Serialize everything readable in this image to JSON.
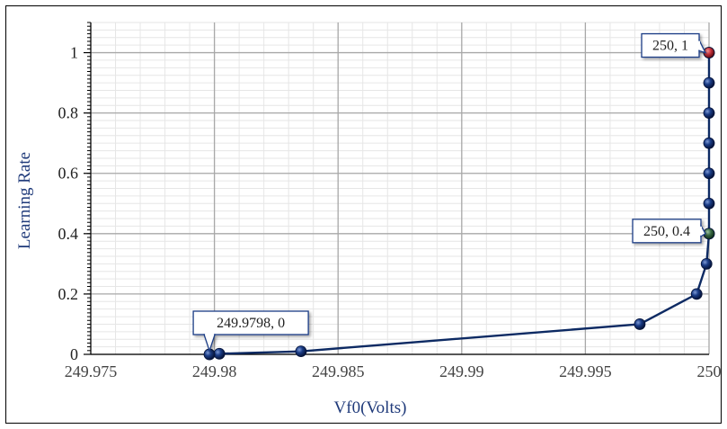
{
  "chart_data": {
    "type": "scatter",
    "title": "",
    "xlabel": "Vf0(Volts)",
    "ylabel": "Learning Rate",
    "xlim": [
      249.975,
      250
    ],
    "ylim": [
      0,
      1.1
    ],
    "x_ticks": [
      "249.975",
      "249.98",
      "249.985",
      "249.99",
      "249.995",
      "250"
    ],
    "y_ticks": [
      "0",
      "0.2",
      "0.4",
      "0.6",
      "0.8",
      "1"
    ],
    "grid": true,
    "series": [
      {
        "points": [
          {
            "x": 249.9798,
            "y": 0
          },
          {
            "x": 249.9802,
            "y": 0.002
          },
          {
            "x": 249.9835,
            "y": 0.01
          },
          {
            "x": 249.9972,
            "y": 0.1
          },
          {
            "x": 249.9995,
            "y": 0.2
          },
          {
            "x": 249.9999,
            "y": 0.3
          },
          {
            "x": 250,
            "y": 0.4
          },
          {
            "x": 250,
            "y": 0.5
          },
          {
            "x": 250,
            "y": 0.6
          },
          {
            "x": 250,
            "y": 0.7
          },
          {
            "x": 250,
            "y": 0.8
          },
          {
            "x": 250,
            "y": 0.9
          },
          {
            "x": 250,
            "y": 1
          }
        ],
        "color": "#0d2a63"
      }
    ],
    "annotations": [
      {
        "text": "249.9798, 0",
        "x": 249.9798,
        "y": 0,
        "marker_color": "#0d2a63"
      },
      {
        "text": "250, 0.4",
        "x": 250,
        "y": 0.4,
        "marker_color": "#3a6b45"
      },
      {
        "text": "250, 1",
        "x": 250,
        "y": 1,
        "marker_color": "#c8323c"
      }
    ],
    "colors": {
      "line": "#0d2a63",
      "marker": "#0d2a63",
      "axis_label": "#1f3a7a",
      "major_grid": "#a8a8a8",
      "minor_grid": "#e6e6e6"
    }
  }
}
